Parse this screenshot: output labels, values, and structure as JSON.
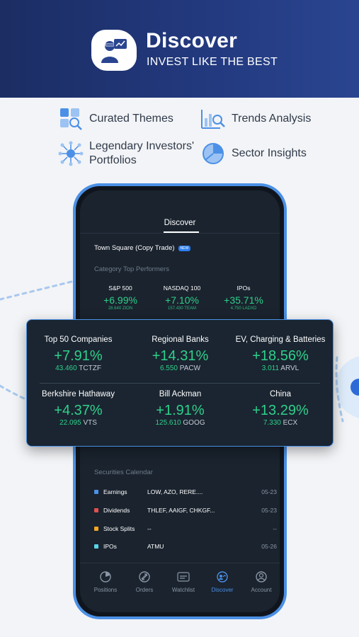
{
  "header": {
    "title": "Discover",
    "subtitle": "INVEST LIKE THE BEST"
  },
  "features": [
    {
      "label": "Curated Themes",
      "icon": "grid-search-icon"
    },
    {
      "label": "Trends Analysis",
      "icon": "bar-chart-search-icon"
    },
    {
      "label": "Legendary Investors' Portfolios",
      "icon": "network-icon"
    },
    {
      "label": "Sector Insights",
      "icon": "pie-chart-icon"
    }
  ],
  "app": {
    "title": "Discover",
    "town_square": "Town Square (Copy Trade)",
    "new_badge": "NEW",
    "category_head": "Category Top Performers",
    "top_performers": [
      {
        "name": "S&P 500",
        "pct": "+6.99%",
        "price": "28.640",
        "ticker": "ZION"
      },
      {
        "name": "NASDAQ 100",
        "pct": "+7.10%",
        "price": "157.430",
        "ticker": "TEAM"
      },
      {
        "name": "IPOs",
        "pct": "+35.71%",
        "price": "4.750",
        "ticker": "LADXD"
      }
    ],
    "calendar_head": "Securities Calendar",
    "calendar": [
      {
        "name": "Earnings",
        "symbols": "LOW, AZO, RERE....",
        "date": "05-23",
        "color": "#4b90e6"
      },
      {
        "name": "Dividends",
        "symbols": "THLEF, AAIGF, CHKGF...",
        "date": "05-23",
        "color": "#e0504f"
      },
      {
        "name": "Stock Splits",
        "symbols": "--",
        "date": "--",
        "color": "#f5a623"
      },
      {
        "name": "IPOs",
        "symbols": "ATMU",
        "date": "05-26",
        "color": "#5ad4e6"
      }
    ],
    "tabs": [
      {
        "label": "Positions",
        "icon": "positions-icon"
      },
      {
        "label": "Orders",
        "icon": "orders-icon"
      },
      {
        "label": "Watchlist",
        "icon": "watchlist-icon"
      },
      {
        "label": "Discover",
        "icon": "discover-icon",
        "active": true
      },
      {
        "label": "Account",
        "icon": "account-icon"
      }
    ]
  },
  "overlay": [
    {
      "name": "Top 50 Companies",
      "pct": "+7.91%",
      "price": "43.460",
      "ticker": "TCTZF"
    },
    {
      "name": "Regional Banks",
      "pct": "+14.31%",
      "price": "6.550",
      "ticker": "PACW"
    },
    {
      "name": "EV, Charging & Batteries",
      "pct": "+18.56%",
      "price": "3.011",
      "ticker": "ARVL"
    },
    {
      "name": "Berkshire Hathaway",
      "pct": "+4.37%",
      "price": "22.095",
      "ticker": "VTS"
    },
    {
      "name": "Bill Ackman",
      "pct": "+1.91%",
      "price": "125.610",
      "ticker": "GOOG"
    },
    {
      "name": "China",
      "pct": "+13.29%",
      "price": "7.330",
      "ticker": "ECX"
    }
  ],
  "colors": {
    "accent": "#4b90e6",
    "positive": "#2fd08a",
    "banner": "#1b2d63"
  }
}
